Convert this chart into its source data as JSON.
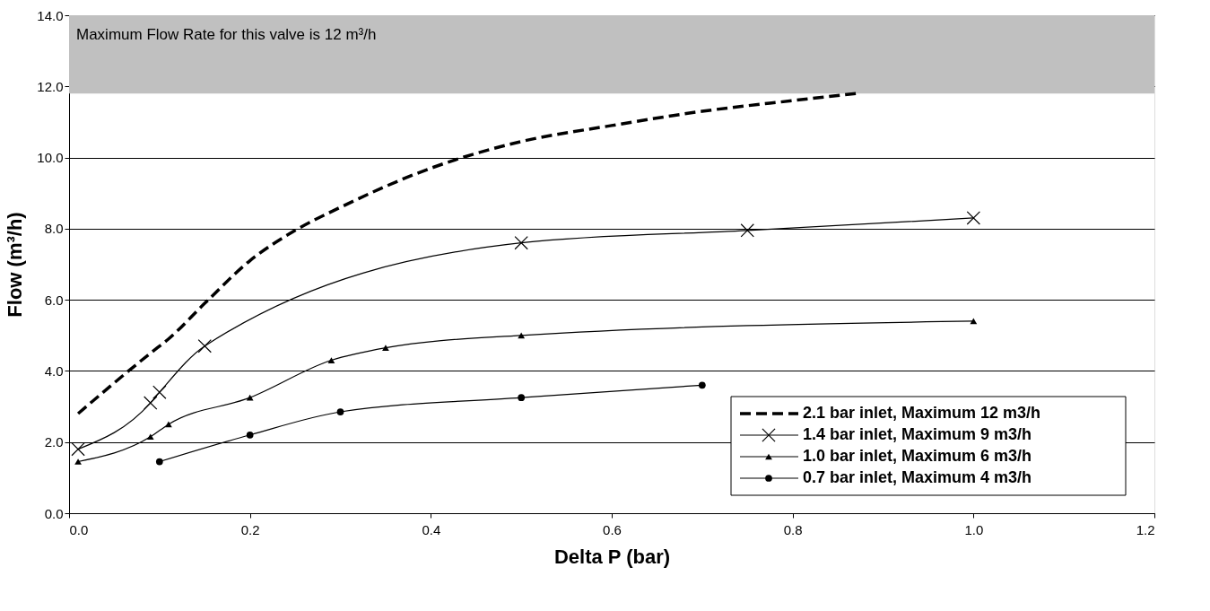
{
  "chart_data": {
    "type": "line",
    "xlabel": "Delta P (bar)",
    "ylabel": "Flow (m³/h)",
    "xlim": [
      0,
      1.2
    ],
    "ylim": [
      0,
      14
    ],
    "xticks": [
      {
        "value": 0,
        "label": "0.0"
      },
      {
        "value": 0.2,
        "label": "0.2"
      },
      {
        "value": 0.4,
        "label": "0.4"
      },
      {
        "value": 0.6,
        "label": "0.6"
      },
      {
        "value": 0.8,
        "label": "0.8"
      },
      {
        "value": 1.0,
        "label": "1.0"
      },
      {
        "value": 1.2,
        "label": "1.2"
      }
    ],
    "yticks": [
      {
        "value": 0,
        "label": "0.0"
      },
      {
        "value": 2,
        "label": "2.0"
      },
      {
        "value": 4,
        "label": "4.0"
      },
      {
        "value": 6,
        "label": "6.0"
      },
      {
        "value": 8,
        "label": "8.0"
      },
      {
        "value": 10,
        "label": "10.0"
      },
      {
        "value": 12,
        "label": "12.0"
      },
      {
        "value": 14,
        "label": "14.0"
      }
    ],
    "grid": "y",
    "legend": "bottom right",
    "bands": [
      {
        "axis": "y",
        "from": 11.8,
        "to": 14,
        "label": "Maximum Flow Rate for this valve is 12 m³/h",
        "color": "#c0c0c0"
      }
    ],
    "series": [
      {
        "name": "2.1 bar inlet, Maximum 12 m3/h",
        "color": "#000000",
        "line_style": "dashed",
        "marker": "none",
        "x": [
          0.01,
          0.09,
          0.11,
          0.15,
          0.2,
          0.25,
          0.3,
          0.4,
          0.5,
          0.6,
          0.7,
          0.8,
          0.87
        ],
        "values": [
          2.8,
          4.5,
          4.9,
          5.9,
          7.1,
          7.95,
          8.6,
          9.7,
          10.45,
          10.9,
          11.3,
          11.6,
          11.8
        ]
      },
      {
        "name": "1.4 bar inlet, Maximum 9 m3/h",
        "color": "#000000",
        "line_style": "solid",
        "marker": "cross",
        "x": [
          0.01,
          0.09,
          0.1,
          0.15,
          0.5,
          0.75,
          1.0
        ],
        "values": [
          1.8,
          3.1,
          3.4,
          4.7,
          7.6,
          7.95,
          8.3
        ]
      },
      {
        "name": "1.0 bar inlet, Maximum 6 m3/h",
        "color": "#000000",
        "line_style": "solid",
        "marker": "triangle",
        "x": [
          0.01,
          0.09,
          0.11,
          0.2,
          0.29,
          0.35,
          0.5,
          1.0
        ],
        "values": [
          1.45,
          2.15,
          2.5,
          3.25,
          4.3,
          4.65,
          5.0,
          5.4
        ]
      },
      {
        "name": "0.7 bar inlet, Maximum 4 m3/h",
        "color": "#000000",
        "line_style": "solid",
        "marker": "circle",
        "x": [
          0.1,
          0.2,
          0.3,
          0.5,
          0.7
        ],
        "values": [
          1.45,
          2.2,
          2.85,
          3.25,
          3.6
        ]
      }
    ]
  }
}
